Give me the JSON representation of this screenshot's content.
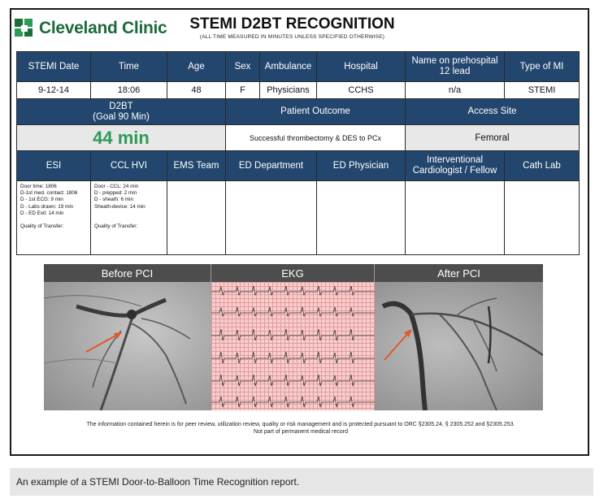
{
  "brand": {
    "name": "Cleveland Clinic"
  },
  "report": {
    "title": "STEMI D2BT RECOGNITION",
    "subtitle": "(ALL TIME MEASURED IN MINUTES UNLESS SPECIFIED OTHERWISE)"
  },
  "table1": {
    "headers": [
      "STEMI Date",
      "Time",
      "Age",
      "Sex",
      "Ambulance",
      "Hospital",
      "Name on prehospital 12 lead",
      "Type of MI"
    ],
    "values": [
      "9-12-14",
      "18:06",
      "48",
      "F",
      "Physicians",
      "CCHS",
      "n/a",
      "STEMI"
    ]
  },
  "d2bt": {
    "label_line1": "D2BT",
    "label_line2": "(Goal 90 Min)",
    "value": "44 min"
  },
  "outcome": {
    "label": "Patient Outcome",
    "value": "Successful thrombectomy & DES to PCx"
  },
  "access": {
    "label": "Access Site",
    "value": "Femoral"
  },
  "teams": {
    "headers": [
      "ESI",
      "CCL HVI",
      "EMS Team",
      "ED Department",
      "ED Physician",
      "Interventional Cardiologist / Fellow",
      "Cath Lab"
    ],
    "esi_notes": [
      "Door time: 1806",
      "D-1st med. contact: 1806",
      "D - 1st ECG: 9 min",
      "D - Labs drawn: 19 min",
      "D - ED Exit: 14 min",
      "",
      "Quality of Transfer:"
    ],
    "ccl_notes": [
      "Door - CCL: 24 min",
      "D - prepped: 2 min",
      "D - sheath: 6 min",
      "Sheath-device: 14 min",
      "",
      "",
      "Quality of Transfer:"
    ]
  },
  "images": {
    "before": "Before PCI",
    "ekg": "EKG",
    "after": "After PCI"
  },
  "disclaimer": {
    "line1": "The information contained herein is for peer review, utilization review, quality or risk management and is protected pursuant to ORC §2305.24, § 2305.252 and §2305.253.",
    "line2": "Not part of permanent medical record"
  },
  "caption": "An example of a STEMI Door-to-Balloon Time Recognition report."
}
